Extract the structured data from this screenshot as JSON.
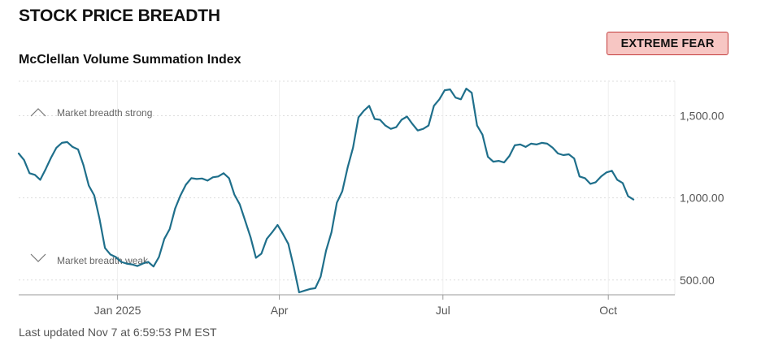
{
  "header": {
    "title": "STOCK PRICE BREADTH",
    "status_badge": "EXTREME FEAR",
    "badge_bg": "#f7c6c3",
    "badge_border": "#c23b3b"
  },
  "footer": {
    "last_updated": "Last updated Nov 7 at 6:59:53 PM EST"
  },
  "annotations": {
    "strong": "Market breadth strong",
    "weak": "Market breadth weak",
    "strong_icon": "chevron-up-icon",
    "weak_icon": "chevron-down-icon"
  },
  "chart_data": {
    "type": "line",
    "title": "McClellan Volume Summation Index",
    "xlabel": "",
    "ylabel": "",
    "line_color": "#1f6f8b",
    "grid": true,
    "grid_style": "dashed horizontal",
    "ylim": [
      410,
      1710
    ],
    "xlim": [
      "2024-11-07",
      "2025-11-07"
    ],
    "y_ticks": [
      {
        "value": 500,
        "label": "500.00"
      },
      {
        "value": 1000,
        "label": "1,000.00"
      },
      {
        "value": 1500,
        "label": "1,500.00"
      }
    ],
    "x_ticks": [
      {
        "date": "2025-01-01",
        "label": "Jan 2025"
      },
      {
        "date": "2025-04-01",
        "label": "Apr"
      },
      {
        "date": "2025-07-01",
        "label": "Jul"
      },
      {
        "date": "2025-10-01",
        "label": "Oct"
      }
    ],
    "series": [
      {
        "name": "",
        "points": [
          [
            "2024-11-07",
            1270
          ],
          [
            "2024-11-10",
            1230
          ],
          [
            "2024-11-13",
            1150
          ],
          [
            "2024-11-16",
            1140
          ],
          [
            "2024-11-19",
            1110
          ],
          [
            "2024-11-22",
            1175
          ],
          [
            "2024-11-25",
            1245
          ],
          [
            "2024-11-28",
            1305
          ],
          [
            "2024-12-01",
            1335
          ],
          [
            "2024-12-04",
            1340
          ],
          [
            "2024-12-07",
            1310
          ],
          [
            "2024-12-10",
            1295
          ],
          [
            "2024-12-13",
            1200
          ],
          [
            "2024-12-16",
            1075
          ],
          [
            "2024-12-19",
            1015
          ],
          [
            "2024-12-22",
            870
          ],
          [
            "2024-12-25",
            695
          ],
          [
            "2024-12-28",
            655
          ],
          [
            "2024-12-31",
            640
          ],
          [
            "2025-01-03",
            610
          ],
          [
            "2025-01-06",
            600
          ],
          [
            "2025-01-09",
            595
          ],
          [
            "2025-01-12",
            585
          ],
          [
            "2025-01-15",
            600
          ],
          [
            "2025-01-18",
            610
          ],
          [
            "2025-01-21",
            582
          ],
          [
            "2025-01-24",
            640
          ],
          [
            "2025-01-27",
            750
          ],
          [
            "2025-01-30",
            810
          ],
          [
            "2025-02-02",
            935
          ],
          [
            "2025-02-05",
            1015
          ],
          [
            "2025-02-08",
            1080
          ],
          [
            "2025-02-11",
            1120
          ],
          [
            "2025-02-14",
            1115
          ],
          [
            "2025-02-17",
            1118
          ],
          [
            "2025-02-20",
            1105
          ],
          [
            "2025-02-23",
            1125
          ],
          [
            "2025-02-26",
            1130
          ],
          [
            "2025-03-01",
            1150
          ],
          [
            "2025-03-04",
            1120
          ],
          [
            "2025-03-07",
            1020
          ],
          [
            "2025-03-10",
            960
          ],
          [
            "2025-03-13",
            860
          ],
          [
            "2025-03-16",
            760
          ],
          [
            "2025-03-19",
            635
          ],
          [
            "2025-03-22",
            660
          ],
          [
            "2025-03-25",
            750
          ],
          [
            "2025-03-28",
            790
          ],
          [
            "2025-03-31",
            835
          ],
          [
            "2025-04-03",
            780
          ],
          [
            "2025-04-06",
            720
          ],
          [
            "2025-04-09",
            580
          ],
          [
            "2025-04-12",
            425
          ],
          [
            "2025-04-15",
            435
          ],
          [
            "2025-04-18",
            445
          ],
          [
            "2025-04-21",
            450
          ],
          [
            "2025-04-24",
            520
          ],
          [
            "2025-04-27",
            680
          ],
          [
            "2025-04-30",
            790
          ],
          [
            "2025-05-03",
            970
          ],
          [
            "2025-05-06",
            1040
          ],
          [
            "2025-05-09",
            1185
          ],
          [
            "2025-05-12",
            1305
          ],
          [
            "2025-05-15",
            1490
          ],
          [
            "2025-05-18",
            1530
          ],
          [
            "2025-05-21",
            1560
          ],
          [
            "2025-05-24",
            1480
          ],
          [
            "2025-05-27",
            1475
          ],
          [
            "2025-05-30",
            1440
          ],
          [
            "2025-06-02",
            1420
          ],
          [
            "2025-06-05",
            1430
          ],
          [
            "2025-06-08",
            1475
          ],
          [
            "2025-06-11",
            1495
          ],
          [
            "2025-06-14",
            1450
          ],
          [
            "2025-06-17",
            1410
          ],
          [
            "2025-06-20",
            1420
          ],
          [
            "2025-06-23",
            1440
          ],
          [
            "2025-06-26",
            1560
          ],
          [
            "2025-06-29",
            1600
          ],
          [
            "2025-07-02",
            1655
          ],
          [
            "2025-07-05",
            1660
          ],
          [
            "2025-07-08",
            1610
          ],
          [
            "2025-07-11",
            1600
          ],
          [
            "2025-07-14",
            1665
          ],
          [
            "2025-07-17",
            1640
          ],
          [
            "2025-07-20",
            1440
          ],
          [
            "2025-07-23",
            1385
          ],
          [
            "2025-07-26",
            1250
          ],
          [
            "2025-07-29",
            1220
          ],
          [
            "2025-08-01",
            1225
          ],
          [
            "2025-08-04",
            1215
          ],
          [
            "2025-08-07",
            1255
          ],
          [
            "2025-08-10",
            1320
          ],
          [
            "2025-08-13",
            1325
          ],
          [
            "2025-08-16",
            1310
          ],
          [
            "2025-08-19",
            1330
          ],
          [
            "2025-08-22",
            1325
          ],
          [
            "2025-08-25",
            1335
          ],
          [
            "2025-08-28",
            1330
          ],
          [
            "2025-08-31",
            1305
          ],
          [
            "2025-09-03",
            1270
          ],
          [
            "2025-09-06",
            1260
          ],
          [
            "2025-09-09",
            1265
          ],
          [
            "2025-09-12",
            1240
          ],
          [
            "2025-09-15",
            1130
          ],
          [
            "2025-09-18",
            1120
          ],
          [
            "2025-09-21",
            1085
          ],
          [
            "2025-09-24",
            1095
          ],
          [
            "2025-09-27",
            1130
          ],
          [
            "2025-09-30",
            1155
          ],
          [
            "2025-10-03",
            1165
          ],
          [
            "2025-10-06",
            1110
          ],
          [
            "2025-10-09",
            1090
          ],
          [
            "2025-10-12",
            1010
          ],
          [
            "2025-10-15",
            990
          ]
        ]
      }
    ]
  }
}
